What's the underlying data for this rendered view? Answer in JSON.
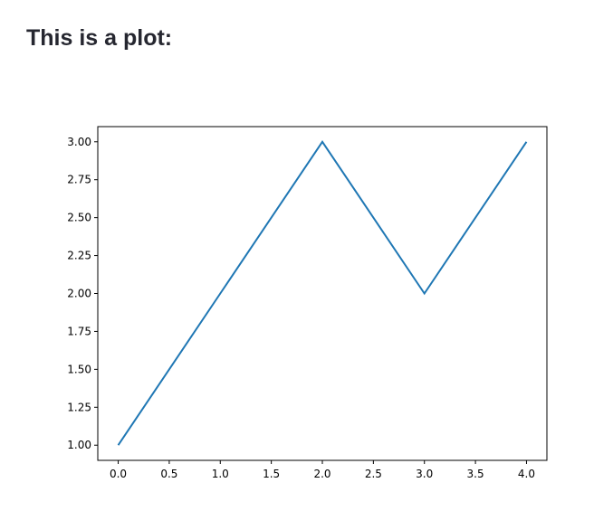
{
  "page": {
    "heading": "This is a plot:"
  },
  "chart_data": {
    "type": "line",
    "x": [
      0,
      1,
      2,
      3,
      4
    ],
    "series": [
      {
        "values": [
          1,
          2,
          3,
          2,
          3
        ],
        "color": "#1f77b4"
      }
    ],
    "xlim": [
      -0.2,
      4.2
    ],
    "ylim": [
      0.9,
      3.1
    ],
    "xticks": [
      "0.0",
      "0.5",
      "1.0",
      "1.5",
      "2.0",
      "2.5",
      "3.0",
      "3.5",
      "4.0"
    ],
    "yticks": [
      "1.00",
      "1.25",
      "1.50",
      "1.75",
      "2.00",
      "2.25",
      "2.50",
      "2.75",
      "3.00"
    ],
    "grid": false,
    "title": "",
    "xlabel": "",
    "ylabel": ""
  }
}
